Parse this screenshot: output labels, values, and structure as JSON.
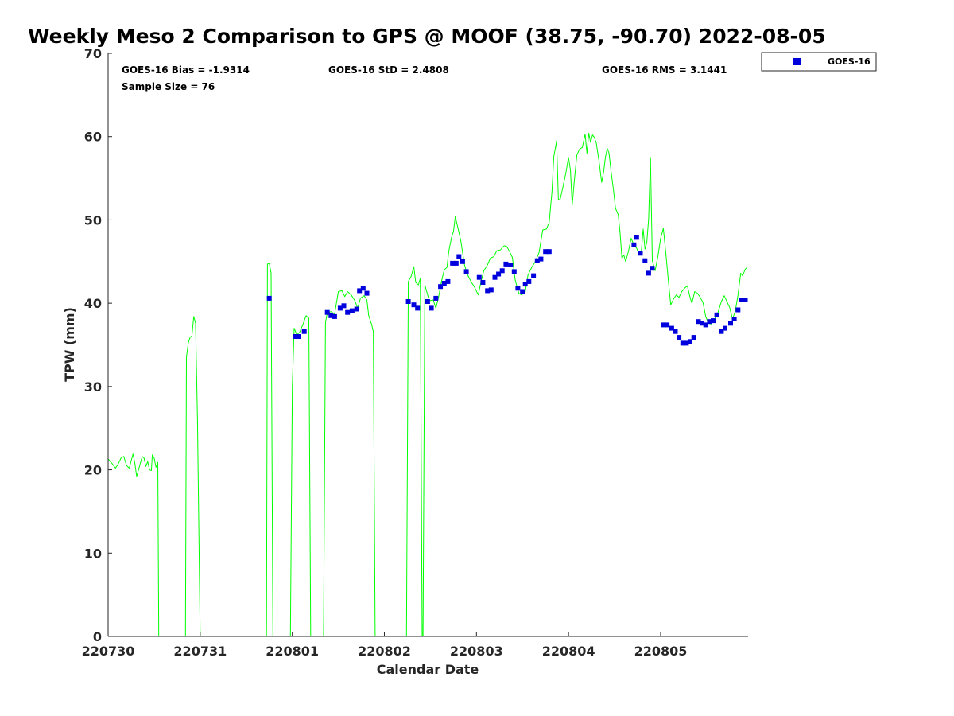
{
  "chart_data": {
    "type": "line",
    "title": "Weekly Meso 2 Comparison to GPS @ MOOF (38.75, -90.70) 2022-08-05",
    "xlabel": "Calendar Date",
    "ylabel": "TPW (mm)",
    "xlim": [
      0,
      6.95
    ],
    "ylim": [
      0,
      70
    ],
    "x_unit": "days since 220730 00Z",
    "x_ticks": [
      {
        "x": 0,
        "label": "220730"
      },
      {
        "x": 1,
        "label": "220731"
      },
      {
        "x": 2,
        "label": "220801"
      },
      {
        "x": 3,
        "label": "220802"
      },
      {
        "x": 4,
        "label": "220803"
      },
      {
        "x": 5,
        "label": "220804"
      },
      {
        "x": 6,
        "label": "220805"
      }
    ],
    "y_ticks": [
      0,
      10,
      20,
      30,
      40,
      50,
      60,
      70
    ],
    "grid": false,
    "legend_position": "top-right, outside plot",
    "stats": {
      "bias": "GOES-16 Bias = -1.9314",
      "std": "GOES-16 StD = 2.4808",
      "rms": "GOES-16 RMS = 3.1441",
      "sample_size": "Sample Size = 76"
    },
    "colors": {
      "gps_line": "#00ff00",
      "goes_marker": "#0000dd"
    },
    "series": [
      {
        "name": "GOES-16",
        "kind": "scatter",
        "marker": "square",
        "points": [
          [
            1.75,
            40.6
          ],
          [
            2.03,
            36.0
          ],
          [
            2.07,
            36.0
          ],
          [
            2.13,
            36.6
          ],
          [
            2.38,
            38.9
          ],
          [
            2.42,
            38.5
          ],
          [
            2.46,
            38.4
          ],
          [
            2.52,
            39.4
          ],
          [
            2.56,
            39.7
          ],
          [
            2.6,
            38.9
          ],
          [
            2.65,
            39.1
          ],
          [
            2.7,
            39.3
          ],
          [
            2.73,
            41.5
          ],
          [
            2.77,
            41.8
          ],
          [
            2.81,
            41.2
          ],
          [
            3.26,
            40.2
          ],
          [
            3.32,
            39.8
          ],
          [
            3.36,
            39.4
          ],
          [
            3.47,
            40.2
          ],
          [
            3.51,
            39.4
          ],
          [
            3.56,
            40.6
          ],
          [
            3.61,
            42.0
          ],
          [
            3.65,
            42.4
          ],
          [
            3.69,
            42.6
          ],
          [
            3.74,
            44.8
          ],
          [
            3.78,
            44.8
          ],
          [
            3.81,
            45.6
          ],
          [
            3.85,
            45.0
          ],
          [
            3.89,
            43.8
          ],
          [
            4.03,
            43.1
          ],
          [
            4.07,
            42.5
          ],
          [
            4.12,
            41.5
          ],
          [
            4.16,
            41.6
          ],
          [
            4.2,
            43.1
          ],
          [
            4.24,
            43.5
          ],
          [
            4.28,
            43.9
          ],
          [
            4.32,
            44.7
          ],
          [
            4.37,
            44.6
          ],
          [
            4.41,
            43.8
          ],
          [
            4.45,
            41.8
          ],
          [
            4.5,
            41.4
          ],
          [
            4.53,
            42.3
          ],
          [
            4.57,
            42.6
          ],
          [
            4.62,
            43.3
          ],
          [
            4.66,
            45.1
          ],
          [
            4.7,
            45.3
          ],
          [
            4.75,
            46.2
          ],
          [
            4.79,
            46.2
          ],
          [
            5.71,
            47.0
          ],
          [
            5.74,
            47.9
          ],
          [
            5.78,
            46.0
          ],
          [
            5.83,
            45.1
          ],
          [
            5.87,
            43.6
          ],
          [
            5.91,
            44.2
          ],
          [
            6.03,
            37.4
          ],
          [
            6.07,
            37.4
          ],
          [
            6.12,
            37.0
          ],
          [
            6.16,
            36.6
          ],
          [
            6.2,
            35.9
          ],
          [
            6.24,
            35.2
          ],
          [
            6.28,
            35.2
          ],
          [
            6.32,
            35.4
          ],
          [
            6.36,
            35.9
          ],
          [
            6.41,
            37.8
          ],
          [
            6.45,
            37.6
          ],
          [
            6.49,
            37.4
          ],
          [
            6.53,
            37.8
          ],
          [
            6.57,
            37.9
          ],
          [
            6.61,
            38.6
          ],
          [
            6.66,
            36.6
          ],
          [
            6.7,
            37.0
          ],
          [
            6.76,
            37.6
          ],
          [
            6.8,
            38.1
          ],
          [
            6.84,
            39.2
          ],
          [
            6.88,
            40.4
          ],
          [
            6.92,
            40.4
          ]
        ]
      },
      {
        "name": "",
        "kind": "line",
        "segments": [
          [
            [
              0.0,
              21.3
            ],
            [
              0.04,
              20.8
            ],
            [
              0.08,
              20.2
            ],
            [
              0.11,
              20.7
            ],
            [
              0.14,
              21.4
            ],
            [
              0.17,
              21.6
            ],
            [
              0.2,
              20.5
            ],
            [
              0.23,
              20.2
            ],
            [
              0.25,
              21.1
            ],
            [
              0.27,
              21.9
            ],
            [
              0.29,
              20.8
            ],
            [
              0.31,
              19.2
            ],
            [
              0.34,
              20.4
            ],
            [
              0.37,
              21.6
            ],
            [
              0.39,
              21.4
            ],
            [
              0.41,
              20.4
            ],
            [
              0.43,
              21.0
            ],
            [
              0.45,
              20.0
            ],
            [
              0.47,
              19.9
            ],
            [
              0.48,
              21.8
            ],
            [
              0.5,
              21.4
            ],
            [
              0.52,
              20.3
            ],
            [
              0.54,
              20.9
            ],
            [
              0.55,
              0
            ]
          ],
          [
            [
              0.84,
              0
            ],
            [
              0.85,
              33.5
            ],
            [
              0.87,
              35.2
            ],
            [
              0.89,
              35.9
            ],
            [
              0.91,
              36.1
            ],
            [
              0.93,
              38.4
            ],
            [
              0.95,
              37.6
            ],
            [
              0.97,
              26.0
            ],
            [
              1.0,
              0
            ]
          ],
          [
            [
              1.72,
              0
            ],
            [
              1.73,
              44.7
            ],
            [
              1.75,
              44.8
            ],
            [
              1.77,
              43.6
            ],
            [
              1.79,
              0
            ]
          ],
          [
            [
              1.98,
              0
            ],
            [
              2.0,
              30.0
            ],
            [
              2.02,
              37.0
            ],
            [
              2.05,
              36.2
            ],
            [
              2.08,
              36.5
            ],
            [
              2.12,
              37.6
            ],
            [
              2.15,
              38.5
            ],
            [
              2.18,
              38.2
            ],
            [
              2.2,
              0
            ]
          ],
          [
            [
              2.34,
              0
            ],
            [
              2.36,
              37.7
            ],
            [
              2.38,
              38.8
            ],
            [
              2.42,
              39.0
            ],
            [
              2.46,
              38.7
            ],
            [
              2.5,
              41.4
            ],
            [
              2.54,
              41.5
            ],
            [
              2.57,
              40.8
            ],
            [
              2.6,
              41.4
            ],
            [
              2.64,
              41.0
            ],
            [
              2.68,
              40.3
            ],
            [
              2.71,
              39.4
            ],
            [
              2.74,
              40.6
            ],
            [
              2.78,
              40.9
            ],
            [
              2.81,
              40.4
            ],
            [
              2.83,
              38.5
            ],
            [
              2.86,
              37.5
            ],
            [
              2.88,
              36.6
            ],
            [
              2.9,
              0
            ]
          ],
          [
            [
              3.24,
              0
            ],
            [
              3.26,
              42.6
            ],
            [
              3.29,
              43.2
            ],
            [
              3.32,
              44.4
            ],
            [
              3.34,
              42.5
            ],
            [
              3.37,
              42.2
            ],
            [
              3.39,
              43.0
            ],
            [
              3.41,
              0
            ]
          ],
          [
            [
              3.42,
              0
            ],
            [
              3.44,
              42.2
            ],
            [
              3.47,
              41.0
            ],
            [
              3.49,
              40.3
            ],
            [
              3.53,
              40.4
            ],
            [
              3.56,
              39.4
            ],
            [
              3.59,
              40.8
            ],
            [
              3.62,
              42.6
            ],
            [
              3.65,
              44.0
            ],
            [
              3.68,
              44.3
            ],
            [
              3.7,
              46.3
            ],
            [
              3.73,
              47.9
            ],
            [
              3.75,
              48.6
            ],
            [
              3.77,
              50.4
            ],
            [
              3.8,
              49.0
            ],
            [
              3.83,
              47.5
            ],
            [
              3.87,
              44.6
            ],
            [
              3.9,
              43.5
            ],
            [
              3.94,
              42.6
            ],
            [
              3.98,
              41.9
            ],
            [
              4.02,
              41.0
            ],
            [
              4.05,
              42.6
            ],
            [
              4.08,
              43.9
            ],
            [
              4.12,
              44.6
            ],
            [
              4.15,
              45.4
            ],
            [
              4.19,
              45.6
            ],
            [
              4.22,
              46.3
            ],
            [
              4.26,
              46.4
            ],
            [
              4.3,
              46.9
            ],
            [
              4.33,
              46.8
            ],
            [
              4.36,
              46.2
            ],
            [
              4.39,
              45.5
            ],
            [
              4.42,
              42.8
            ],
            [
              4.46,
              41.2
            ],
            [
              4.49,
              41.0
            ],
            [
              4.53,
              41.4
            ],
            [
              4.56,
              43.4
            ],
            [
              4.6,
              44.3
            ],
            [
              4.64,
              45.0
            ],
            [
              4.68,
              46.1
            ],
            [
              4.72,
              48.8
            ],
            [
              4.76,
              48.9
            ],
            [
              4.79,
              49.7
            ],
            [
              4.82,
              53.4
            ],
            [
              4.84,
              57.6
            ],
            [
              4.86,
              58.8
            ],
            [
              4.87,
              59.5
            ],
            [
              4.89,
              52.4
            ],
            [
              4.91,
              52.5
            ],
            [
              4.94,
              54.0
            ],
            [
              4.97,
              55.6
            ],
            [
              5.0,
              57.5
            ],
            [
              5.02,
              56.0
            ],
            [
              5.04,
              51.8
            ],
            [
              5.06,
              54.4
            ],
            [
              5.09,
              57.8
            ],
            [
              5.12,
              58.5
            ],
            [
              5.15,
              58.7
            ],
            [
              5.18,
              60.3
            ],
            [
              5.2,
              58.0
            ],
            [
              5.22,
              60.4
            ],
            [
              5.24,
              59.3
            ],
            [
              5.26,
              60.2
            ],
            [
              5.28,
              59.9
            ],
            [
              5.3,
              59.3
            ],
            [
              5.33,
              57.1
            ],
            [
              5.36,
              54.5
            ],
            [
              5.38,
              55.7
            ],
            [
              5.4,
              57.5
            ],
            [
              5.42,
              58.6
            ],
            [
              5.44,
              58.0
            ],
            [
              5.46,
              56.0
            ],
            [
              5.49,
              53.4
            ],
            [
              5.51,
              51.4
            ],
            [
              5.54,
              50.6
            ],
            [
              5.56,
              48.4
            ],
            [
              5.58,
              45.4
            ],
            [
              5.6,
              45.8
            ],
            [
              5.62,
              45.0
            ],
            [
              5.65,
              46.2
            ],
            [
              5.68,
              47.8
            ],
            [
              5.71,
              47.0
            ],
            [
              5.74,
              46.6
            ],
            [
              5.77,
              45.8
            ],
            [
              5.79,
              46.1
            ],
            [
              5.81,
              48.9
            ],
            [
              5.83,
              46.5
            ],
            [
              5.85,
              47.3
            ],
            [
              5.87,
              50.2
            ],
            [
              5.89,
              57.5
            ],
            [
              5.91,
              45.1
            ],
            [
              5.94,
              43.9
            ],
            [
              5.97,
              45.6
            ],
            [
              6.0,
              47.8
            ],
            [
              6.03,
              49.0
            ],
            [
              6.06,
              45.6
            ],
            [
              6.09,
              42.0
            ],
            [
              6.11,
              39.8
            ],
            [
              6.14,
              40.5
            ],
            [
              6.17,
              41.0
            ],
            [
              6.2,
              40.7
            ],
            [
              6.23,
              41.4
            ],
            [
              6.26,
              41.8
            ],
            [
              6.29,
              42.1
            ],
            [
              6.32,
              40.7
            ],
            [
              6.34,
              40.0
            ],
            [
              6.37,
              41.4
            ],
            [
              6.4,
              41.2
            ],
            [
              6.43,
              40.7
            ],
            [
              6.46,
              40.1
            ],
            [
              6.49,
              38.4
            ],
            [
              6.52,
              37.6
            ],
            [
              6.55,
              37.5
            ],
            [
              6.58,
              38.0
            ],
            [
              6.62,
              38.8
            ],
            [
              6.66,
              40.2
            ],
            [
              6.69,
              40.9
            ],
            [
              6.72,
              40.2
            ],
            [
              6.75,
              39.5
            ],
            [
              6.78,
              38.1
            ],
            [
              6.81,
              39.0
            ],
            [
              6.84,
              41.0
            ],
            [
              6.87,
              43.6
            ],
            [
              6.89,
              43.3
            ],
            [
              6.92,
              44.1
            ],
            [
              6.94,
              44.3
            ]
          ]
        ]
      }
    ]
  }
}
